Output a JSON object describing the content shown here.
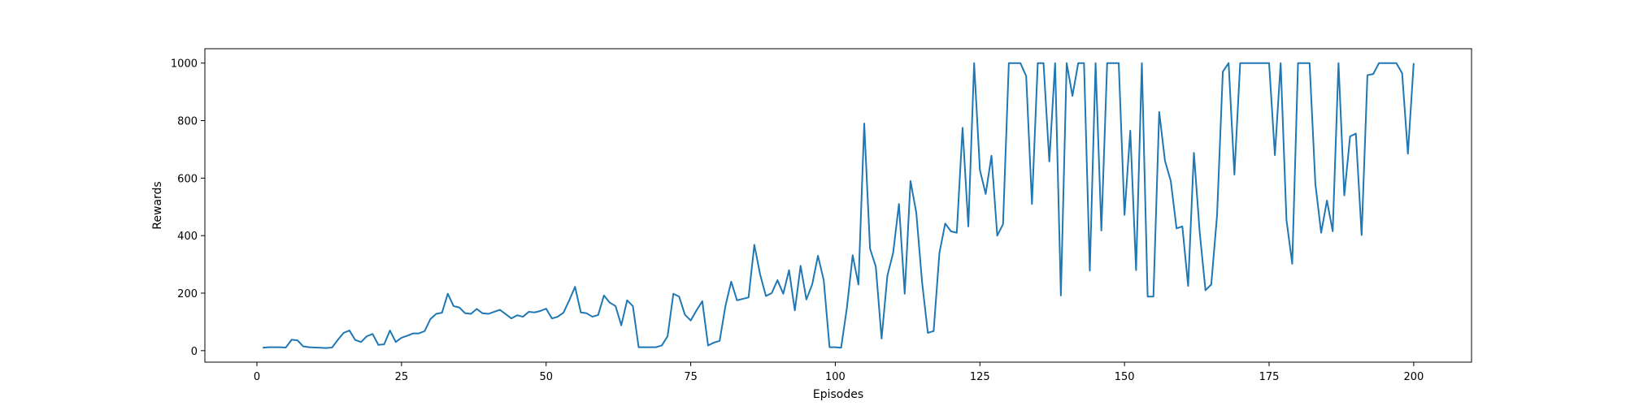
{
  "chart_data": {
    "type": "line",
    "title": "",
    "xlabel": "Episodes",
    "ylabel": "Rewards",
    "xlim": [
      -9,
      210
    ],
    "ylim": [
      -40,
      1050
    ],
    "xticks": [
      0,
      25,
      50,
      75,
      100,
      125,
      150,
      175,
      200
    ],
    "yticks": [
      0,
      200,
      400,
      600,
      800,
      1000
    ],
    "grid": false,
    "color": "#1f77b4",
    "series": [
      {
        "x": [
          1,
          2,
          3,
          4,
          5,
          6,
          7,
          8,
          9,
          10,
          11,
          12,
          13,
          14,
          15,
          16,
          17,
          18,
          19,
          20,
          21,
          22,
          23,
          24,
          25,
          26,
          27,
          28,
          29,
          30,
          31,
          32,
          33,
          34,
          35,
          36,
          37,
          38,
          39,
          40,
          41,
          42,
          43,
          44,
          45,
          46,
          47,
          48,
          49,
          50,
          51,
          52,
          53,
          54,
          55,
          56,
          57,
          58,
          59,
          60,
          61,
          62,
          63,
          64,
          65,
          66,
          67,
          68,
          69,
          70,
          71,
          72,
          73,
          74,
          75,
          76,
          77,
          78,
          79,
          80,
          81,
          82,
          83,
          84,
          85,
          86,
          87,
          88,
          89,
          90,
          91,
          92,
          93,
          94,
          95,
          96,
          97,
          98,
          99,
          100,
          101,
          102,
          103,
          104,
          105,
          106,
          107,
          108,
          109,
          110,
          111,
          112,
          113,
          114,
          115,
          116,
          117,
          118,
          119,
          120,
          121,
          122,
          123,
          124,
          125,
          126,
          127,
          128,
          129,
          130,
          131,
          132,
          133,
          134,
          135,
          136,
          137,
          138,
          139,
          140,
          141,
          142,
          143,
          144,
          145,
          146,
          147,
          148,
          149,
          150,
          151,
          152,
          153,
          154,
          155,
          156,
          157,
          158,
          159,
          160,
          161,
          162,
          163,
          164,
          165,
          166,
          167,
          168,
          169,
          170,
          171,
          172,
          173,
          174,
          175,
          176,
          177,
          178,
          179,
          180,
          181,
          182,
          183,
          184,
          185,
          186,
          187,
          188,
          189,
          190,
          191,
          192,
          193,
          194,
          195,
          196,
          197,
          198,
          199,
          200
        ],
        "values": [
          10,
          12,
          12,
          12,
          11,
          38,
          36,
          15,
          12,
          11,
          10,
          9,
          11,
          38,
          62,
          70,
          37,
          30,
          50,
          58,
          20,
          22,
          70,
          30,
          45,
          52,
          60,
          60,
          68,
          110,
          128,
          132,
          198,
          155,
          150,
          130,
          128,
          145,
          130,
          128,
          135,
          142,
          127,
          112,
          123,
          118,
          135,
          133,
          138,
          146,
          112,
          118,
          132,
          175,
          222,
          133,
          130,
          118,
          124,
          192,
          167,
          155,
          88,
          175,
          155,
          12,
          12,
          12,
          12,
          18,
          50,
          198,
          188,
          125,
          105,
          140,
          172,
          18,
          28,
          34,
          155,
          240,
          175,
          180,
          185,
          368,
          265,
          190,
          200,
          245,
          198,
          280,
          140,
          295,
          178,
          230,
          330,
          245,
          12,
          12,
          10,
          148,
          332,
          230,
          790,
          355,
          292,
          42,
          260,
          340,
          510,
          198,
          590,
          480,
          238,
          62,
          68,
          340,
          442,
          415,
          410,
          775,
          432,
          1000,
          628,
          545,
          678,
          400,
          440,
          1000,
          1000,
          1000,
          955,
          510,
          1000,
          1000,
          658,
          1000,
          192,
          1000,
          886,
          1000,
          1000,
          278,
          1000,
          418,
          1000,
          1000,
          1000,
          472,
          765,
          280,
          1000,
          188,
          188,
          830,
          660,
          590,
          425,
          432,
          225,
          688,
          412,
          210,
          230,
          470,
          970,
          1000,
          612,
          1000,
          1000,
          1000,
          1000,
          1000,
          1000,
          680,
          1000,
          455,
          302,
          1000,
          1000,
          1000,
          580,
          410,
          522,
          415,
          1000,
          540,
          745,
          755,
          402,
          958,
          962,
          1000,
          1000,
          1000,
          1000,
          965,
          685,
          1000
        ]
      }
    ]
  }
}
